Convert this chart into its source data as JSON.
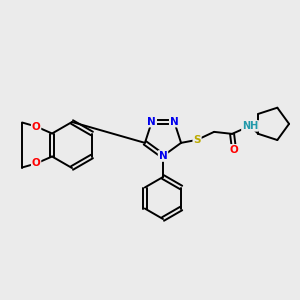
{
  "background_color": "#ebebeb",
  "bond_color": "#000000",
  "atom_colors": {
    "N": "#0000ee",
    "O": "#ff0000",
    "S": "#bbaa00",
    "H": "#2299aa",
    "C": "#000000"
  },
  "figsize": [
    3.0,
    3.0
  ],
  "dpi": 100
}
